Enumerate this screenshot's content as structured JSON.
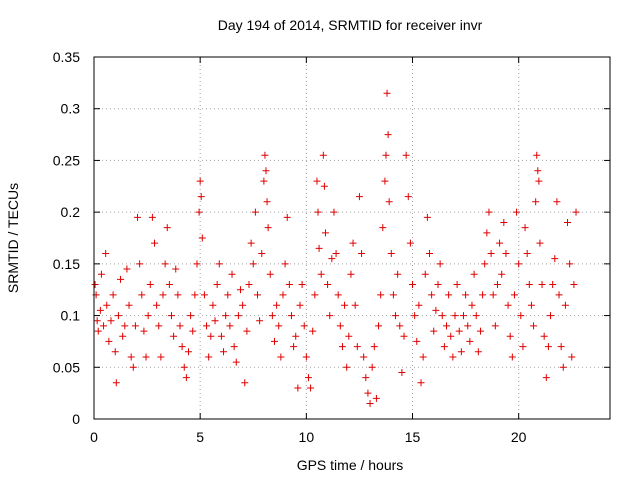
{
  "colors": {
    "marker": "#e00000",
    "grid": "#a0a0a0",
    "axis": "#000000",
    "background": "#ffffff"
  },
  "chart_data": {
    "type": "scatter",
    "title": "Day 194 of 2014, SRMTID for receiver invr",
    "xlabel": "GPS time / hours",
    "ylabel": "SRMTID / TECUs",
    "xlim": [
      0,
      24.3
    ],
    "ylim": [
      0,
      0.35
    ],
    "xticks": [
      0,
      5,
      10,
      15,
      20
    ],
    "xtick_labels": [
      "0",
      "5",
      "10",
      "15",
      "20"
    ],
    "yticks": [
      0,
      0.05,
      0.1,
      0.15,
      0.2,
      0.25,
      0.3,
      0.35
    ],
    "ytick_labels": [
      "0",
      "0.05",
      "0.1",
      "0.15",
      "0.2",
      "0.25",
      "0.3",
      "0.35"
    ],
    "grid": true,
    "marker": "+",
    "series": [
      {
        "name": "SRMTID",
        "points": [
          [
            0.05,
            0.13
          ],
          [
            0.1,
            0.12
          ],
          [
            0.15,
            0.095
          ],
          [
            0.2,
            0.085
          ],
          [
            0.3,
            0.105
          ],
          [
            0.35,
            0.14
          ],
          [
            0.45,
            0.09
          ],
          [
            0.55,
            0.16
          ],
          [
            0.6,
            0.11
          ],
          [
            0.7,
            0.075
          ],
          [
            0.8,
            0.095
          ],
          [
            0.9,
            0.12
          ],
          [
            1.0,
            0.065
          ],
          [
            1.05,
            0.035
          ],
          [
            1.15,
            0.1
          ],
          [
            1.25,
            0.135
          ],
          [
            1.35,
            0.08
          ],
          [
            1.45,
            0.09
          ],
          [
            1.55,
            0.145
          ],
          [
            1.65,
            0.11
          ],
          [
            1.75,
            0.06
          ],
          [
            1.85,
            0.05
          ],
          [
            1.95,
            0.09
          ],
          [
            2.05,
            0.195
          ],
          [
            2.15,
            0.15
          ],
          [
            2.25,
            0.12
          ],
          [
            2.35,
            0.085
          ],
          [
            2.45,
            0.06
          ],
          [
            2.55,
            0.1
          ],
          [
            2.65,
            0.13
          ],
          [
            2.75,
            0.195
          ],
          [
            2.85,
            0.17
          ],
          [
            2.95,
            0.11
          ],
          [
            3.05,
            0.09
          ],
          [
            3.15,
            0.06
          ],
          [
            3.25,
            0.12
          ],
          [
            3.35,
            0.15
          ],
          [
            3.45,
            0.185
          ],
          [
            3.55,
            0.13
          ],
          [
            3.65,
            0.1
          ],
          [
            3.75,
            0.08
          ],
          [
            3.85,
            0.145
          ],
          [
            3.95,
            0.12
          ],
          [
            4.05,
            0.09
          ],
          [
            4.15,
            0.07
          ],
          [
            4.25,
            0.05
          ],
          [
            4.35,
            0.04
          ],
          [
            4.45,
            0.065
          ],
          [
            4.55,
            0.1
          ],
          [
            4.65,
            0.085
          ],
          [
            4.75,
            0.12
          ],
          [
            4.85,
            0.15
          ],
          [
            4.95,
            0.2
          ],
          [
            5.0,
            0.23
          ],
          [
            5.05,
            0.215
          ],
          [
            5.1,
            0.175
          ],
          [
            5.2,
            0.12
          ],
          [
            5.3,
            0.09
          ],
          [
            5.4,
            0.06
          ],
          [
            5.5,
            0.08
          ],
          [
            5.6,
            0.11
          ],
          [
            5.7,
            0.095
          ],
          [
            5.8,
            0.13
          ],
          [
            5.9,
            0.15
          ],
          [
            6.0,
            0.08
          ],
          [
            6.1,
            0.065
          ],
          [
            6.2,
            0.1
          ],
          [
            6.3,
            0.12
          ],
          [
            6.4,
            0.09
          ],
          [
            6.5,
            0.14
          ],
          [
            6.6,
            0.07
          ],
          [
            6.7,
            0.055
          ],
          [
            6.8,
            0.1
          ],
          [
            6.9,
            0.125
          ],
          [
            7.0,
            0.11
          ],
          [
            7.1,
            0.035
          ],
          [
            7.2,
            0.085
          ],
          [
            7.3,
            0.13
          ],
          [
            7.4,
            0.17
          ],
          [
            7.5,
            0.15
          ],
          [
            7.6,
            0.2
          ],
          [
            7.7,
            0.12
          ],
          [
            7.8,
            0.095
          ],
          [
            7.9,
            0.16
          ],
          [
            8.0,
            0.23
          ],
          [
            8.05,
            0.255
          ],
          [
            8.1,
            0.24
          ],
          [
            8.15,
            0.21
          ],
          [
            8.2,
            0.185
          ],
          [
            8.3,
            0.14
          ],
          [
            8.4,
            0.1
          ],
          [
            8.5,
            0.075
          ],
          [
            8.6,
            0.11
          ],
          [
            8.7,
            0.09
          ],
          [
            8.8,
            0.06
          ],
          [
            8.9,
            0.12
          ],
          [
            9.0,
            0.15
          ],
          [
            9.1,
            0.195
          ],
          [
            9.2,
            0.13
          ],
          [
            9.3,
            0.1
          ],
          [
            9.4,
            0.07
          ],
          [
            9.5,
            0.08
          ],
          [
            9.6,
            0.03
          ],
          [
            9.7,
            0.11
          ],
          [
            9.8,
            0.13
          ],
          [
            9.9,
            0.09
          ],
          [
            10.0,
            0.06
          ],
          [
            10.1,
            0.04
          ],
          [
            10.2,
            0.03
          ],
          [
            10.3,
            0.085
          ],
          [
            10.4,
            0.12
          ],
          [
            10.5,
            0.23
          ],
          [
            10.55,
            0.2
          ],
          [
            10.6,
            0.165
          ],
          [
            10.7,
            0.14
          ],
          [
            10.8,
            0.255
          ],
          [
            10.85,
            0.225
          ],
          [
            10.9,
            0.18
          ],
          [
            11.0,
            0.13
          ],
          [
            11.1,
            0.1
          ],
          [
            11.2,
            0.155
          ],
          [
            11.3,
            0.2
          ],
          [
            11.4,
            0.16
          ],
          [
            11.5,
            0.12
          ],
          [
            11.6,
            0.09
          ],
          [
            11.7,
            0.07
          ],
          [
            11.8,
            0.11
          ],
          [
            11.9,
            0.05
          ],
          [
            12.0,
            0.08
          ],
          [
            12.1,
            0.14
          ],
          [
            12.2,
            0.17
          ],
          [
            12.3,
            0.11
          ],
          [
            12.4,
            0.07
          ],
          [
            12.5,
            0.215
          ],
          [
            12.6,
            0.16
          ],
          [
            12.7,
            0.06
          ],
          [
            12.8,
            0.04
          ],
          [
            12.9,
            0.025
          ],
          [
            13.0,
            0.015
          ],
          [
            13.1,
            0.05
          ],
          [
            13.2,
            0.07
          ],
          [
            13.3,
            0.02
          ],
          [
            13.4,
            0.09
          ],
          [
            13.5,
            0.12
          ],
          [
            13.6,
            0.185
          ],
          [
            13.7,
            0.23
          ],
          [
            13.75,
            0.255
          ],
          [
            13.8,
            0.315
          ],
          [
            13.85,
            0.275
          ],
          [
            13.9,
            0.21
          ],
          [
            14.0,
            0.16
          ],
          [
            14.1,
            0.12
          ],
          [
            14.2,
            0.1
          ],
          [
            14.3,
            0.14
          ],
          [
            14.4,
            0.09
          ],
          [
            14.5,
            0.045
          ],
          [
            14.6,
            0.08
          ],
          [
            14.7,
            0.255
          ],
          [
            14.8,
            0.215
          ],
          [
            14.9,
            0.17
          ],
          [
            15.0,
            0.13
          ],
          [
            15.1,
            0.1
          ],
          [
            15.2,
            0.075
          ],
          [
            15.3,
            0.11
          ],
          [
            15.4,
            0.035
          ],
          [
            15.5,
            0.06
          ],
          [
            15.6,
            0.14
          ],
          [
            15.7,
            0.195
          ],
          [
            15.8,
            0.16
          ],
          [
            15.9,
            0.12
          ],
          [
            16.0,
            0.085
          ],
          [
            16.1,
            0.105
          ],
          [
            16.2,
            0.13
          ],
          [
            16.3,
            0.15
          ],
          [
            16.4,
            0.1
          ],
          [
            16.5,
            0.07
          ],
          [
            16.6,
            0.09
          ],
          [
            16.7,
            0.12
          ],
          [
            16.8,
            0.08
          ],
          [
            16.9,
            0.06
          ],
          [
            17.0,
            0.1
          ],
          [
            17.1,
            0.13
          ],
          [
            17.2,
            0.085
          ],
          [
            17.3,
            0.065
          ],
          [
            17.4,
            0.1
          ],
          [
            17.5,
            0.12
          ],
          [
            17.6,
            0.09
          ],
          [
            17.7,
            0.075
          ],
          [
            17.8,
            0.11
          ],
          [
            17.9,
            0.14
          ],
          [
            18.0,
            0.1
          ],
          [
            18.1,
            0.065
          ],
          [
            18.2,
            0.085
          ],
          [
            18.3,
            0.12
          ],
          [
            18.4,
            0.15
          ],
          [
            18.5,
            0.18
          ],
          [
            18.6,
            0.2
          ],
          [
            18.7,
            0.16
          ],
          [
            18.8,
            0.12
          ],
          [
            18.9,
            0.09
          ],
          [
            19.0,
            0.13
          ],
          [
            19.1,
            0.17
          ],
          [
            19.2,
            0.14
          ],
          [
            19.3,
            0.19
          ],
          [
            19.4,
            0.16
          ],
          [
            19.5,
            0.11
          ],
          [
            19.6,
            0.08
          ],
          [
            19.7,
            0.06
          ],
          [
            19.8,
            0.12
          ],
          [
            19.9,
            0.2
          ],
          [
            20.0,
            0.15
          ],
          [
            20.1,
            0.1
          ],
          [
            20.2,
            0.07
          ],
          [
            20.3,
            0.185
          ],
          [
            20.4,
            0.16
          ],
          [
            20.5,
            0.13
          ],
          [
            20.6,
            0.11
          ],
          [
            20.7,
            0.09
          ],
          [
            20.8,
            0.21
          ],
          [
            20.85,
            0.255
          ],
          [
            20.9,
            0.24
          ],
          [
            20.95,
            0.23
          ],
          [
            21.0,
            0.17
          ],
          [
            21.1,
            0.13
          ],
          [
            21.2,
            0.08
          ],
          [
            21.3,
            0.04
          ],
          [
            21.4,
            0.07
          ],
          [
            21.5,
            0.1
          ],
          [
            21.6,
            0.13
          ],
          [
            21.7,
            0.155
          ],
          [
            21.8,
            0.21
          ],
          [
            21.9,
            0.12
          ],
          [
            22.0,
            0.07
          ],
          [
            22.1,
            0.05
          ],
          [
            22.2,
            0.11
          ],
          [
            22.3,
            0.19
          ],
          [
            22.4,
            0.15
          ],
          [
            22.5,
            0.06
          ],
          [
            22.6,
            0.13
          ],
          [
            22.7,
            0.2
          ]
        ]
      }
    ]
  }
}
